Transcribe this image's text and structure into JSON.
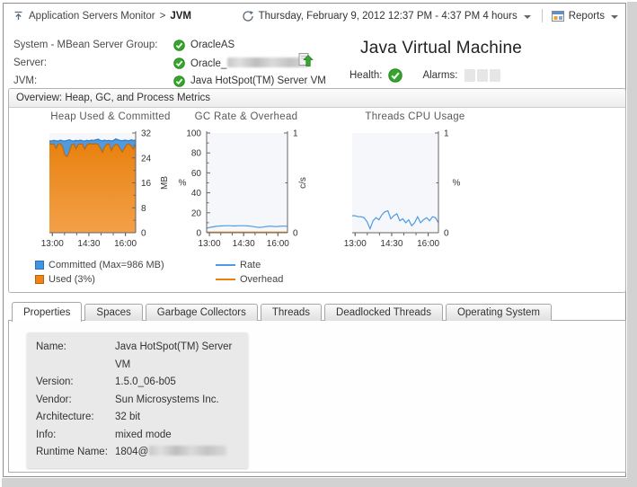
{
  "header": {
    "breadcrumb_parent": "Application Servers Monitor",
    "breadcrumb_sep": ">",
    "breadcrumb_current": "JVM",
    "time_range": "Thursday, February 9, 2012 12:37 PM - 4:37 PM 4 hours",
    "reports_label": "Reports"
  },
  "summary": {
    "rows": [
      {
        "label": "System - MBean Server Group:",
        "value": "OracleAS",
        "status": "ok",
        "redacted": false
      },
      {
        "label": "Server:",
        "value": "Oracle_",
        "status": "ok",
        "redacted": true
      },
      {
        "label": "JVM:",
        "value": "Java HotSpot(TM) Server VM",
        "status": "ok",
        "redacted": false
      }
    ]
  },
  "titlebox": {
    "title": "Java Virtual Machine",
    "health_label": "Health:",
    "alarms_label": "Alarms:"
  },
  "overview": {
    "header": "Overview: Heap, GC, and Process Metrics"
  },
  "chart_data": [
    {
      "type": "area",
      "title": "Heap Used & Committed",
      "x_range": [
        12.88,
        16.42
      ],
      "x_tick_step": 0.5,
      "x_majors": [
        {
          "t": 13,
          "label": "13:00"
        },
        {
          "t": 14.5,
          "label": "14:30"
        },
        {
          "t": 16,
          "label": "16:00"
        }
      ],
      "plot_bg": "#f5f7fa",
      "layout": {
        "w": 150,
        "h": 143,
        "ml": 7,
        "mr": 47,
        "mt": 8,
        "mb": 24
      },
      "axes": [
        {
          "side": "right",
          "min": 0,
          "max": 32,
          "majors": [
            0,
            8,
            16,
            24,
            32
          ],
          "minors": [
            4,
            12,
            20,
            28
          ],
          "label": "MB",
          "rotate": true,
          "label_dx": 32
        }
      ],
      "series": [
        {
          "name": "Committed",
          "type": "area",
          "axis": 0,
          "color": "#2d77c4",
          "fill": "#4f9be2",
          "values": [
            29.5,
            29.4,
            29.6,
            29.5,
            29.4,
            29.7,
            29.5,
            29.4,
            29.6,
            29.8,
            29.5,
            29.4,
            29.6,
            29.5,
            29.7,
            29.5,
            29.4,
            29.6,
            29.5,
            29.7,
            29.6,
            29.8,
            30.0,
            29.6,
            29.5,
            29.7,
            29.5,
            29.6,
            29.4,
            29.6,
            30.1,
            29.8,
            29.6,
            29.5,
            29.7,
            29.6,
            29.5,
            29.8,
            29.6,
            29.7
          ]
        },
        {
          "name": "Used",
          "type": "area",
          "axis": 0,
          "color": "#b96a10",
          "fill": "#e8820f",
          "fill2": "#f3a04a",
          "values": [
            28.6,
            28.4,
            28.5,
            27.0,
            28.4,
            28.6,
            27.5,
            25.0,
            24.4,
            26.0,
            28.2,
            28.5,
            26.9,
            28.3,
            28.5,
            28.4,
            26.8,
            28.2,
            28.6,
            28.5,
            28.4,
            28.6,
            28.3,
            27.2,
            25.8,
            27.6,
            28.4,
            28.5,
            26.3,
            27.8,
            28.4,
            28.2,
            26.9,
            25.9,
            27.2,
            28.3,
            28.5,
            27.8,
            26.8,
            28.3
          ]
        }
      ],
      "legend": [
        {
          "label": "Committed (Max=986 MB)",
          "color": "#3f94e4",
          "swatch": "square"
        },
        {
          "label": "Used (3%)",
          "color": "#ed8415",
          "swatch": "square"
        }
      ]
    },
    {
      "type": "line",
      "title": "GC Rate & Overhead",
      "x_range": [
        12.88,
        16.42
      ],
      "x_tick_step": 0.5,
      "x_majors": [
        {
          "t": 13,
          "label": "13:00"
        },
        {
          "t": 14.5,
          "label": "14:30"
        },
        {
          "t": 16,
          "label": "16:00"
        }
      ],
      "plot_bg": "#f5f7fa",
      "layout": {
        "w": 152,
        "h": 143,
        "ml": 32,
        "mr": 30,
        "mt": 8,
        "mb": 24
      },
      "axes": [
        {
          "side": "left",
          "min": 0,
          "max": 100,
          "majors": [
            0,
            20,
            40,
            60,
            80,
            100
          ],
          "minors": [
            10,
            30,
            50,
            70,
            90
          ],
          "label": "%",
          "rotate": false,
          "label_dx": 27
        },
        {
          "side": "right",
          "min": 0,
          "max": 1,
          "majors": [
            0,
            1
          ],
          "minors": [
            0.5
          ],
          "label": "c/s",
          "rotate": true,
          "label_dx": 17
        }
      ],
      "series": [
        {
          "name": "Rate",
          "type": "line",
          "axis": 0,
          "color": "#4f9be2",
          "values": [
            4.5,
            5.2,
            5.8,
            6.2,
            6.6,
            6.8,
            6.9,
            7.0,
            7.0,
            6.9,
            6.8,
            6.9,
            7.0,
            7.0,
            6.9,
            6.8,
            6.5,
            6.0,
            5.6,
            5.3,
            5.6,
            6.0,
            6.4,
            6.6,
            6.3,
            6.1,
            6.4,
            6.6,
            6.6,
            6.5
          ]
        },
        {
          "name": "Overhead",
          "type": "line",
          "axis": 0,
          "color": "#e8820f",
          "values": [
            0.5,
            0.5,
            0.5,
            0.5,
            0.5,
            0.5,
            0.5,
            0.5,
            0.5,
            0.5,
            0.5,
            0.5,
            0.5,
            0.5,
            0.5,
            0.5,
            0.5,
            0.5,
            0.5,
            0.5,
            0.5,
            0.5,
            0.5,
            0.5,
            0.5,
            0.5,
            0.5,
            0.5,
            0.5,
            0.5
          ]
        }
      ],
      "legend": [
        {
          "label": "Rate",
          "color": "#4f9be2",
          "swatch": "line"
        },
        {
          "label": "Overhead",
          "color": "#e8820f",
          "swatch": "line"
        }
      ]
    },
    {
      "type": "line",
      "title": "Threads CPU Usage",
      "x_range": [
        12.88,
        16.42
      ],
      "x_tick_step": 0.5,
      "x_majors": [
        {
          "t": 13,
          "label": "13:00"
        },
        {
          "t": 14.5,
          "label": "14:30"
        },
        {
          "t": 16,
          "label": "16:00"
        }
      ],
      "plot_bg": "#f5f7fa",
      "layout": {
        "w": 150,
        "h": 143,
        "ml": 5,
        "mr": 49,
        "mt": 8,
        "mb": 24
      },
      "axes": [
        {
          "side": "right",
          "min": 0,
          "max": 1,
          "majors": [
            0,
            1
          ],
          "minors": [
            0.5
          ],
          "label": "%",
          "rotate": false,
          "label_dx": 20
        }
      ],
      "series": [
        {
          "name": "Threads CPU",
          "type": "line",
          "axis": 0,
          "color": "#4f9be2",
          "values": [
            0.17,
            0.17,
            0.16,
            0.16,
            0.15,
            0.11,
            0.04,
            0.12,
            0.15,
            0.13,
            0.18,
            0.21,
            0.22,
            0.14,
            0.17,
            0.19,
            0.12,
            0.14,
            0.1,
            0.13,
            0.07,
            0.1,
            0.16,
            0.1,
            0.13,
            0.15,
            0.12,
            0.16,
            0.15,
            0.1
          ]
        }
      ],
      "legend": []
    }
  ],
  "tabs": [
    {
      "label": "Properties",
      "active": true
    },
    {
      "label": "Spaces",
      "active": false
    },
    {
      "label": "Garbage Collectors",
      "active": false
    },
    {
      "label": "Threads",
      "active": false
    },
    {
      "label": "Deadlocked Threads",
      "active": false
    },
    {
      "label": "Operating System",
      "active": false
    }
  ],
  "properties": {
    "rows": [
      {
        "label": "Name:",
        "value": "Java HotSpot(TM) Server VM",
        "redacted": false
      },
      {
        "label": "Version:",
        "value": "1.5.0_06-b05",
        "redacted": false
      },
      {
        "label": "Vendor:",
        "value": "Sun Microsystems Inc.",
        "redacted": false
      },
      {
        "label": "Architecture:",
        "value": "32 bit",
        "redacted": false
      },
      {
        "label": "Info:",
        "value": "mixed mode",
        "redacted": false
      },
      {
        "label": "Runtime Name:",
        "value": "1804@",
        "redacted": true
      }
    ]
  },
  "colors": {
    "blue": "#4f9be2",
    "orange": "#ed8415",
    "green": "#35a62c",
    "accent_text": "#333333"
  }
}
